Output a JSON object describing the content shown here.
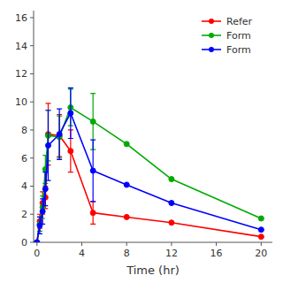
{
  "chart_data": {
    "type": "line",
    "xlabel": "Time (hr)",
    "x": [
      0,
      0.25,
      0.5,
      0.75,
      1,
      2,
      3,
      5,
      8,
      12,
      20
    ],
    "series": [
      {
        "name": "Refer",
        "color": "#ff0000",
        "values": [
          0,
          1.5,
          2.8,
          3.2,
          7.7,
          7.6,
          6.5,
          2.1,
          1.8,
          1.4,
          0.4
        ],
        "errors": [
          0,
          0.5,
          0.8,
          0.8,
          2.2,
          1.5,
          1.5,
          0.8,
          0,
          0,
          0
        ]
      },
      {
        "name": "Form",
        "color": "#00aa00",
        "values": [
          0,
          1.3,
          2.5,
          5.2,
          7.6,
          7.5,
          9.6,
          8.6,
          7.0,
          4.5,
          1.7
        ],
        "errors": [
          0,
          0.5,
          0.8,
          1.0,
          1.8,
          1.5,
          1.3,
          2.0,
          0,
          0,
          0
        ]
      },
      {
        "name": "Form",
        "color": "#0000ff",
        "values": [
          0,
          1.2,
          2.2,
          3.8,
          6.9,
          7.7,
          9.2,
          5.1,
          4.1,
          2.8,
          0.9
        ],
        "errors": [
          0,
          0.6,
          0.9,
          1.2,
          2.5,
          1.8,
          1.8,
          2.2,
          0,
          0,
          0
        ]
      }
    ],
    "xlim": [
      -0.3,
      21
    ],
    "ylim": [
      0,
      16.5
    ],
    "xticks": [
      0,
      4,
      8,
      12,
      16,
      20
    ],
    "yticks": [
      0,
      2,
      4,
      6,
      8,
      10,
      12,
      14,
      16
    ],
    "marker": "circle",
    "line_style": "solid",
    "grid": false,
    "legend": "upper right"
  }
}
